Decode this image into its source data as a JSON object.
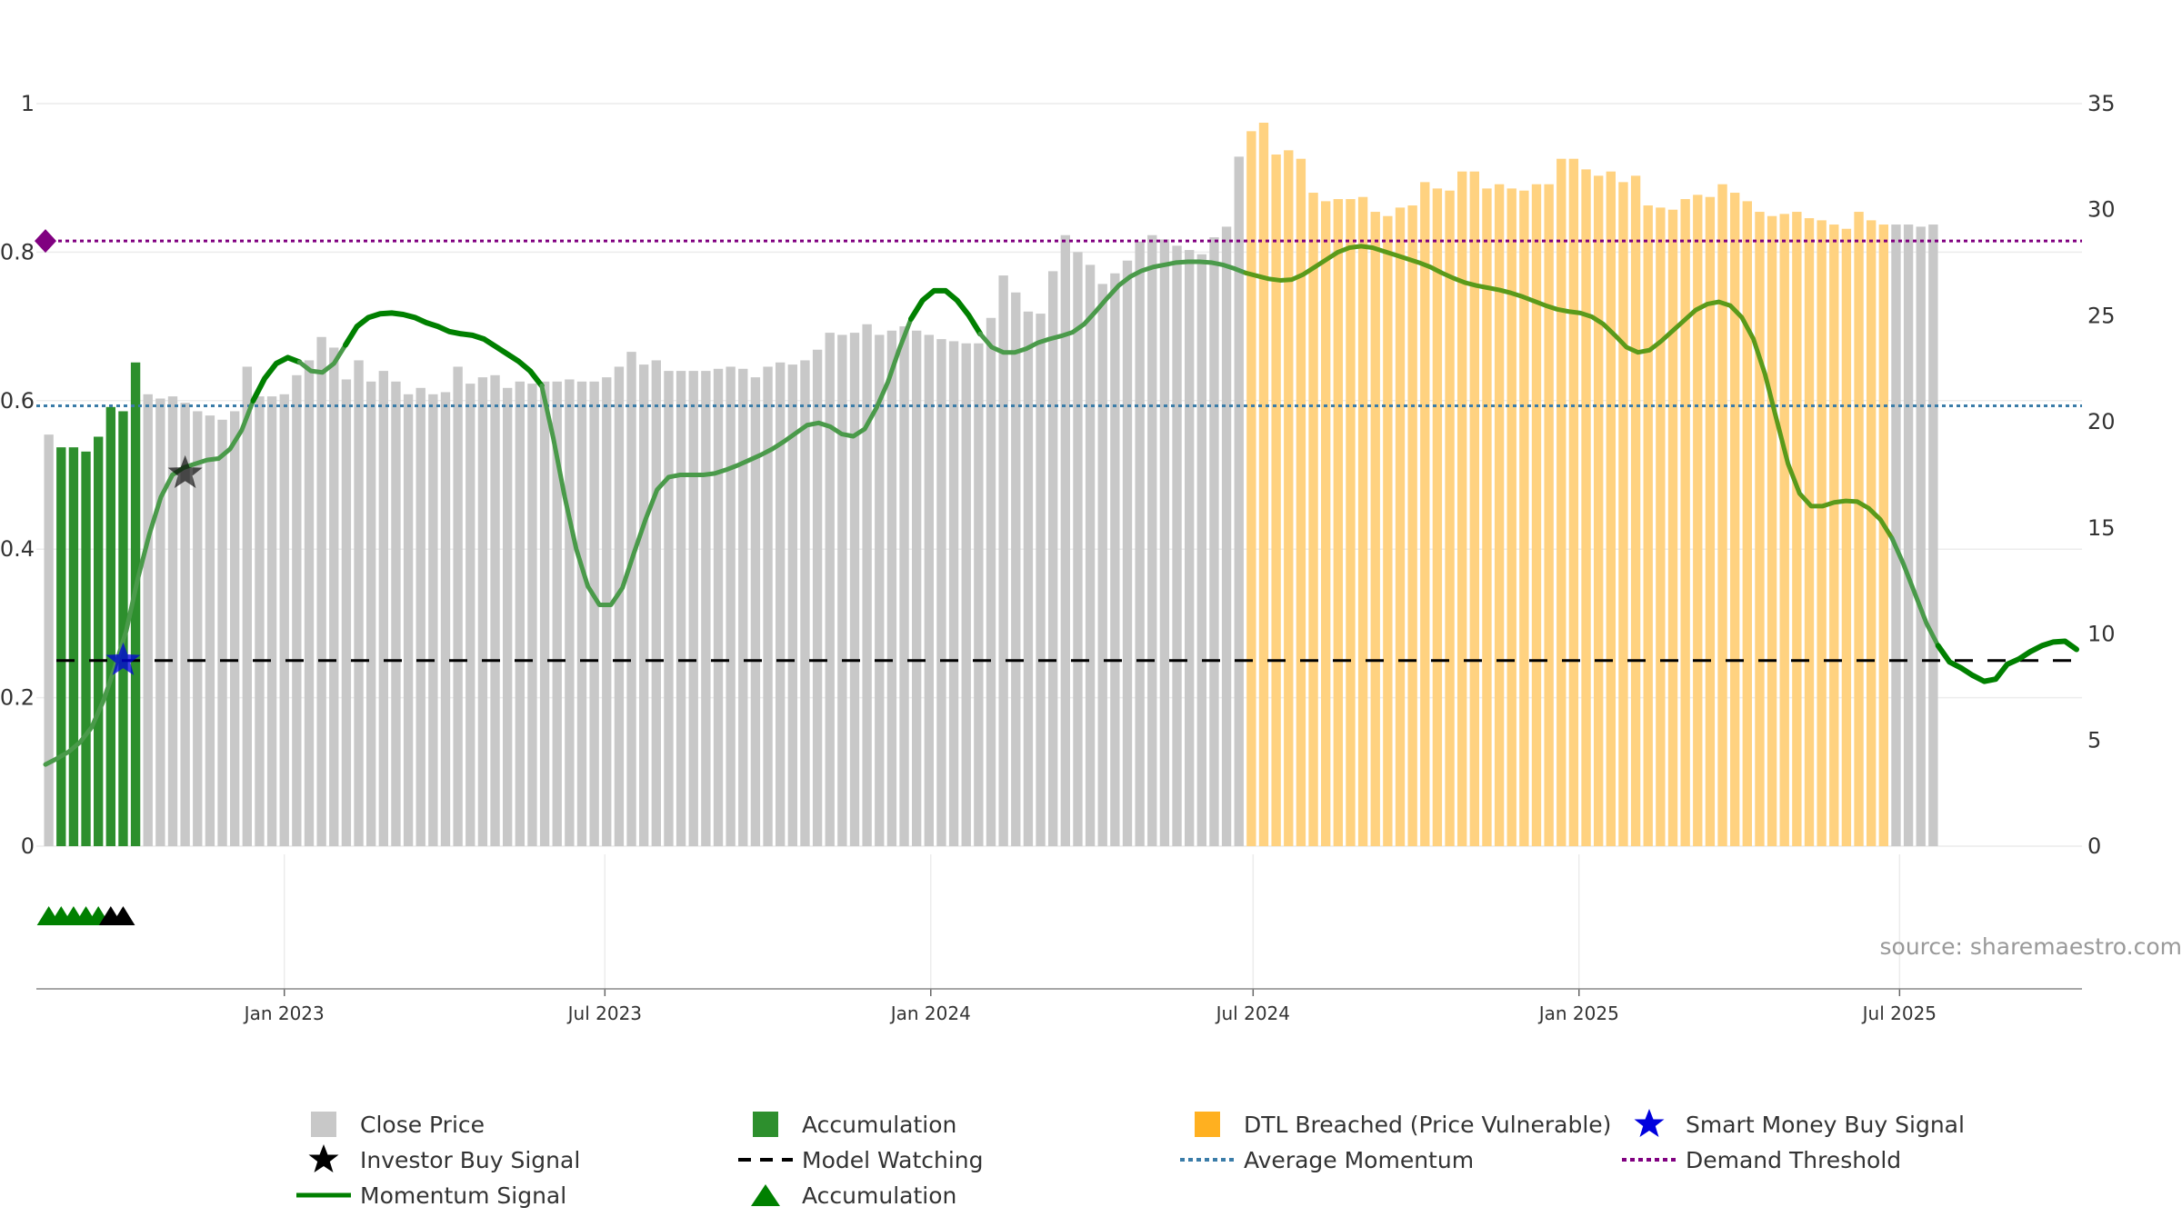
{
  "source_note": "source: sharemaestro.com",
  "chart_data": {
    "type": "bar",
    "y_left": {
      "ticks": [
        "0",
        "0.2",
        "0.4",
        "0.6",
        "0.8",
        "1"
      ],
      "range": [
        0,
        1
      ]
    },
    "y_right": {
      "ticks": [
        "0",
        "5",
        "10",
        "15",
        "20",
        "25",
        "30",
        "35"
      ],
      "range": [
        0,
        35
      ]
    },
    "x_ticks": [
      "Jan 2023",
      "Jul 2023",
      "Jan 2024",
      "Jul 2024",
      "Jan 2025",
      "Jul 2025"
    ],
    "x_tick_dates": [
      "2023-01-01",
      "2023-07-01",
      "2024-01-01",
      "2024-07-01",
      "2025-01-01",
      "2025-07-01"
    ],
    "x_range": [
      "2022-08-14",
      "2025-10-12"
    ],
    "grid": true,
    "legend_position": "bottom",
    "series_colors": {
      "close_price": "#c8c8c8",
      "accumulation": "#2d8f2d",
      "dtl_breached": "#ffd280",
      "momentum": "#008000",
      "average_momentum": "#3a7ca8",
      "demand_threshold": "#800080",
      "model_watching": "#000000",
      "smart_money": "#0000dd",
      "investor_buy": "#000000"
    },
    "close_price": {
      "start_date": "2022-08-21",
      "week_step_days": 7,
      "values": [
        19.4,
        18.8,
        18.8,
        18.6,
        19.3,
        20.7,
        20.5,
        22.8,
        21.3,
        21.1,
        21.2,
        20.9,
        20.5,
        20.3,
        20.1,
        20.5,
        22.6,
        21.2,
        21.2,
        21.3,
        22.2,
        22.9,
        24.0,
        23.5,
        22.0,
        22.9,
        21.9,
        22.4,
        21.9,
        21.3,
        21.6,
        21.3,
        21.4,
        22.6,
        21.8,
        22.1,
        22.2,
        21.6,
        21.9,
        21.8,
        21.9,
        21.9,
        22.0,
        21.9,
        21.9,
        22.1,
        22.6,
        23.3,
        22.7,
        22.9,
        22.4,
        22.4,
        22.4,
        22.4,
        22.5,
        22.6,
        22.5,
        22.1,
        22.6,
        22.8,
        22.7,
        22.9,
        23.4,
        24.2,
        24.1,
        24.2,
        24.6,
        24.1,
        24.3,
        24.5,
        24.3,
        24.1,
        23.9,
        23.8,
        23.7,
        23.7,
        24.9,
        26.9,
        26.1,
        25.2,
        25.1,
        27.1,
        28.8,
        28.0,
        27.4,
        26.5,
        27.0,
        27.6,
        28.5,
        28.8,
        28.6,
        28.3,
        28.1,
        27.9,
        28.7,
        29.2,
        32.5,
        33.7,
        34.1,
        32.6,
        32.8,
        32.4,
        30.8,
        30.4,
        30.5,
        30.5,
        30.6,
        29.9,
        29.7,
        30.1,
        30.2,
        31.3,
        31.0,
        30.9,
        31.8,
        31.8,
        31.0,
        31.2,
        31.0,
        30.9,
        31.2,
        31.2,
        32.4,
        32.4,
        31.9,
        31.6,
        31.8,
        31.3,
        31.6,
        30.2,
        30.1,
        30.0,
        30.5,
        30.7,
        30.6,
        31.2,
        30.8,
        30.4,
        29.9,
        29.7,
        29.8,
        29.9,
        29.6,
        29.5,
        29.3,
        29.1,
        29.9,
        29.5,
        29.3,
        29.3,
        29.3,
        29.2,
        29.3
      ],
      "accumulation_weeks": [
        1,
        7
      ],
      "dtl_breached_weeks": [
        97,
        148
      ]
    },
    "momentum": {
      "values": [
        0.11,
        0.118,
        0.127,
        0.14,
        0.16,
        0.195,
        0.24,
        0.29,
        0.36,
        0.42,
        0.47,
        0.5,
        0.51,
        0.515,
        0.52,
        0.522,
        0.535,
        0.56,
        0.6,
        0.63,
        0.65,
        0.658,
        0.652,
        0.64,
        0.638,
        0.65,
        0.675,
        0.7,
        0.712,
        0.717,
        0.718,
        0.716,
        0.712,
        0.705,
        0.7,
        0.693,
        0.69,
        0.688,
        0.683,
        0.673,
        0.663,
        0.653,
        0.64,
        0.62,
        0.55,
        0.47,
        0.4,
        0.35,
        0.325,
        0.325,
        0.348,
        0.395,
        0.44,
        0.48,
        0.497,
        0.5,
        0.5,
        0.5,
        0.502,
        0.507,
        0.513,
        0.52,
        0.527,
        0.535,
        0.545,
        0.556,
        0.567,
        0.57,
        0.565,
        0.555,
        0.552,
        0.562,
        0.59,
        0.625,
        0.67,
        0.71,
        0.735,
        0.748,
        0.748,
        0.735,
        0.715,
        0.69,
        0.672,
        0.665,
        0.665,
        0.67,
        0.678,
        0.683,
        0.687,
        0.692,
        0.703,
        0.72,
        0.738,
        0.755,
        0.767,
        0.775,
        0.78,
        0.783,
        0.786,
        0.787,
        0.787,
        0.786,
        0.783,
        0.778,
        0.772,
        0.768,
        0.764,
        0.762,
        0.763,
        0.77,
        0.78,
        0.79,
        0.8,
        0.806,
        0.808,
        0.806,
        0.801,
        0.796,
        0.791,
        0.786,
        0.78,
        0.772,
        0.765,
        0.759,
        0.755,
        0.752,
        0.749,
        0.745,
        0.74,
        0.734,
        0.728,
        0.723,
        0.72,
        0.718,
        0.713,
        0.703,
        0.688,
        0.672,
        0.665,
        0.668,
        0.68,
        0.694,
        0.708,
        0.722,
        0.73,
        0.733,
        0.728,
        0.712,
        0.683,
        0.636,
        0.575,
        0.515,
        0.475,
        0.458,
        0.458,
        0.463,
        0.465,
        0.464,
        0.455,
        0.44,
        0.415,
        0.38,
        0.34,
        0.3,
        0.27,
        0.248,
        0.24,
        0.23,
        0.222,
        0.225,
        0.245,
        0.252,
        0.262,
        0.27,
        0.275,
        0.276,
        0.265
      ]
    },
    "average_momentum": 0.593,
    "demand_threshold": 0.815,
    "model_watching": 0.25,
    "smart_money_signals": [
      {
        "date": "2022-10-02",
        "value": 0.25
      }
    ],
    "investor_buy_signals": [
      {
        "date": "2022-11-06",
        "value": 0.502
      }
    ],
    "accumulation_markers": {
      "green": [
        "2022-08-21",
        "2022-08-28",
        "2022-09-04",
        "2022-09-11",
        "2022-09-18"
      ],
      "black": [
        "2022-09-25",
        "2022-10-02"
      ]
    }
  },
  "legend": [
    {
      "id": "close_price",
      "label": "Close Price",
      "symbol": "square"
    },
    {
      "id": "investor_buy",
      "label": "Investor Buy Signal",
      "symbol": "star"
    },
    {
      "id": "momentum",
      "label": "Momentum Signal",
      "symbol": "line-solid"
    },
    {
      "id": "accumulation",
      "label": "Accumulation",
      "symbol": "square"
    },
    {
      "id": "model_watching",
      "label": "Model Watching",
      "symbol": "line-dash"
    },
    {
      "id": "accumulation_tri",
      "label": "Accumulation",
      "symbol": "triangle"
    },
    {
      "id": "dtl_breached",
      "label": "DTL Breached (Price Vulnerable)",
      "symbol": "square"
    },
    {
      "id": "average_momentum",
      "label": "Average Momentum",
      "symbol": "line-dot"
    },
    {
      "id": "smart_money",
      "label": "Smart Money Buy Signal",
      "symbol": "star"
    },
    {
      "id": "demand_threshold",
      "label": "Demand Threshold",
      "symbol": "line-dot"
    }
  ]
}
